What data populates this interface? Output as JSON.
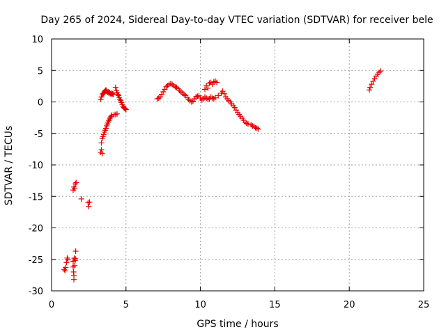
{
  "chart_data": {
    "type": "scatter",
    "title": "Day 265 of 2024, Sidereal Day-to-day VTEC variation (SDTVAR) for receiver bele",
    "xlabel": "GPS time / hours",
    "ylabel": "SDTVAR / TECUs",
    "xlim": [
      0,
      25
    ],
    "ylim": [
      -30,
      10
    ],
    "xticks": [
      0,
      5,
      10,
      15,
      20,
      25
    ],
    "yticks": [
      -30,
      -25,
      -20,
      -15,
      -10,
      -5,
      0,
      5,
      10
    ],
    "grid": true,
    "marker": "+",
    "colors": {
      "series": "#e60000",
      "grid": "#a0a0a0",
      "axis": "#000000"
    },
    "series": [
      {
        "name": "SDTVAR",
        "points": [
          [
            0.85,
            -26.6
          ],
          [
            0.9,
            -26.8
          ],
          [
            0.95,
            -26.3
          ],
          [
            1.0,
            -25.5
          ],
          [
            1.05,
            -24.8
          ],
          [
            1.1,
            -25.0
          ],
          [
            1.45,
            -25.3
          ],
          [
            1.45,
            -26.2
          ],
          [
            1.48,
            -27.0
          ],
          [
            1.5,
            -27.6
          ],
          [
            1.5,
            -28.2
          ],
          [
            1.52,
            -24.8
          ],
          [
            1.55,
            -26.0
          ],
          [
            1.58,
            -25.2
          ],
          [
            1.6,
            -24.9
          ],
          [
            1.62,
            -23.7
          ],
          [
            1.45,
            -14.0
          ],
          [
            1.5,
            -13.5
          ],
          [
            1.55,
            -13.8
          ],
          [
            1.6,
            -13.0
          ],
          [
            1.65,
            -12.8
          ],
          [
            2.0,
            -15.4
          ],
          [
            2.45,
            -16.0
          ],
          [
            2.5,
            -16.6
          ],
          [
            2.55,
            -15.9
          ],
          [
            3.3,
            -8.0
          ],
          [
            3.35,
            -7.6
          ],
          [
            3.4,
            -8.2
          ],
          [
            3.35,
            -6.5
          ],
          [
            3.4,
            -5.8
          ],
          [
            3.45,
            -5.5
          ],
          [
            3.5,
            -5.2
          ],
          [
            3.55,
            -4.8
          ],
          [
            3.6,
            -4.5
          ],
          [
            3.65,
            -4.2
          ],
          [
            3.7,
            -3.8
          ],
          [
            3.75,
            -3.5
          ],
          [
            3.8,
            -3.2
          ],
          [
            3.85,
            -3.0
          ],
          [
            3.9,
            -2.7
          ],
          [
            3.95,
            -2.5
          ],
          [
            4.0,
            -2.3
          ],
          [
            4.05,
            -2.1
          ],
          [
            4.2,
            -2.0
          ],
          [
            4.3,
            -2.0
          ],
          [
            4.4,
            -1.9
          ],
          [
            3.3,
            0.4
          ],
          [
            3.35,
            0.8
          ],
          [
            3.4,
            1.1
          ],
          [
            3.45,
            1.3
          ],
          [
            3.5,
            1.4
          ],
          [
            3.55,
            1.6
          ],
          [
            3.6,
            1.8
          ],
          [
            3.65,
            1.9
          ],
          [
            3.7,
            1.7
          ],
          [
            3.75,
            1.5
          ],
          [
            3.8,
            1.6
          ],
          [
            3.85,
            1.4
          ],
          [
            3.9,
            1.5
          ],
          [
            3.95,
            1.3
          ],
          [
            4.0,
            1.4
          ],
          [
            4.05,
            1.2
          ],
          [
            4.1,
            1.3
          ],
          [
            4.15,
            1.2
          ],
          [
            4.3,
            2.3
          ],
          [
            4.35,
            1.8
          ],
          [
            4.4,
            1.5
          ],
          [
            4.45,
            1.2
          ],
          [
            4.5,
            1.0
          ],
          [
            4.55,
            0.7
          ],
          [
            4.6,
            0.4
          ],
          [
            4.65,
            0.2
          ],
          [
            4.7,
            -0.1
          ],
          [
            4.75,
            -0.4
          ],
          [
            4.8,
            -0.7
          ],
          [
            4.85,
            -0.9
          ],
          [
            4.9,
            -1.0
          ],
          [
            4.95,
            -1.1
          ],
          [
            5.0,
            -1.2
          ],
          [
            7.1,
            0.5
          ],
          [
            7.2,
            0.6
          ],
          [
            7.3,
            0.8
          ],
          [
            7.4,
            1.2
          ],
          [
            7.5,
            1.6
          ],
          [
            7.6,
            2.0
          ],
          [
            7.7,
            2.4
          ],
          [
            7.8,
            2.6
          ],
          [
            7.9,
            2.8
          ],
          [
            8.0,
            2.9
          ],
          [
            8.1,
            2.8
          ],
          [
            8.2,
            2.6
          ],
          [
            8.3,
            2.4
          ],
          [
            8.4,
            2.3
          ],
          [
            8.5,
            2.1
          ],
          [
            8.6,
            1.8
          ],
          [
            8.7,
            1.6
          ],
          [
            8.8,
            1.4
          ],
          [
            8.9,
            1.2
          ],
          [
            9.0,
            1.0
          ],
          [
            9.1,
            0.7
          ],
          [
            9.2,
            0.4
          ],
          [
            9.3,
            0.2
          ],
          [
            9.4,
            0.0
          ],
          [
            9.5,
            0.1
          ],
          [
            9.6,
            0.5
          ],
          [
            9.7,
            0.8
          ],
          [
            9.8,
            0.9
          ],
          [
            9.9,
            1.0
          ],
          [
            10.0,
            0.6
          ],
          [
            10.1,
            0.3
          ],
          [
            10.2,
            0.5
          ],
          [
            10.3,
            0.8
          ],
          [
            10.4,
            0.6
          ],
          [
            10.5,
            0.4
          ],
          [
            10.6,
            0.5
          ],
          [
            10.3,
            2.0
          ],
          [
            10.4,
            2.6
          ],
          [
            10.5,
            2.2
          ],
          [
            10.6,
            3.0
          ],
          [
            10.7,
            3.1
          ],
          [
            10.8,
            2.8
          ],
          [
            10.9,
            3.2
          ],
          [
            11.0,
            3.3
          ],
          [
            11.1,
            3.1
          ],
          [
            10.7,
            0.8
          ],
          [
            10.8,
            0.6
          ],
          [
            10.9,
            0.5
          ],
          [
            11.0,
            0.7
          ],
          [
            11.2,
            1.0
          ],
          [
            11.4,
            1.4
          ],
          [
            11.5,
            1.7
          ],
          [
            11.6,
            1.3
          ],
          [
            11.7,
            0.8
          ],
          [
            11.8,
            0.5
          ],
          [
            11.9,
            0.2
          ],
          [
            12.0,
            0.0
          ],
          [
            12.1,
            -0.3
          ],
          [
            12.2,
            -0.6
          ],
          [
            12.3,
            -0.9
          ],
          [
            12.4,
            -1.3
          ],
          [
            12.5,
            -1.7
          ],
          [
            12.6,
            -2.0
          ],
          [
            12.7,
            -2.3
          ],
          [
            12.8,
            -2.6
          ],
          [
            12.9,
            -2.9
          ],
          [
            13.0,
            -3.2
          ],
          [
            13.1,
            -3.4
          ],
          [
            13.2,
            -3.5
          ],
          [
            13.4,
            -3.6
          ],
          [
            13.5,
            -3.8
          ],
          [
            13.6,
            -3.9
          ],
          [
            13.7,
            -4.1
          ],
          [
            13.8,
            -4.2
          ],
          [
            13.9,
            -4.3
          ],
          [
            21.35,
            1.9
          ],
          [
            21.4,
            2.3
          ],
          [
            21.5,
            2.8
          ],
          [
            21.6,
            3.3
          ],
          [
            21.7,
            3.7
          ],
          [
            21.8,
            4.1
          ],
          [
            21.9,
            4.4
          ],
          [
            22.0,
            4.7
          ],
          [
            22.1,
            4.9
          ]
        ]
      }
    ]
  }
}
